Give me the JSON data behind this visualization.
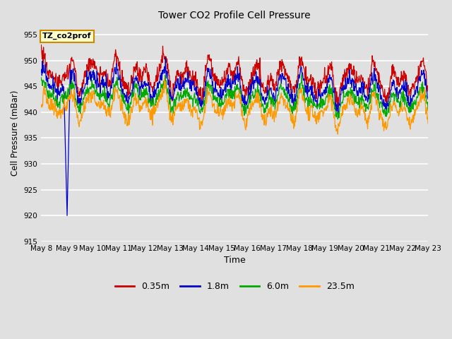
{
  "title": "Tower CO2 Profile Cell Pressure",
  "xlabel": "Time",
  "ylabel": "Cell Pressure (mBar)",
  "ylim": [
    915,
    957
  ],
  "yticks": [
    915,
    920,
    925,
    930,
    935,
    940,
    945,
    950,
    955
  ],
  "background_color": "#e0e0e0",
  "plot_bg_color": "#e0e0e0",
  "grid_color": "#ffffff",
  "series": [
    {
      "label": "0.35m",
      "color": "#cc0000",
      "base": 947.5,
      "amp": 2.0,
      "noise": 0.8
    },
    {
      "label": "1.8m",
      "color": "#0000cc",
      "base": 945.5,
      "amp": 1.8,
      "noise": 0.7
    },
    {
      "label": "6.0m",
      "color": "#00aa00",
      "base": 943.5,
      "amp": 1.5,
      "noise": 0.6
    },
    {
      "label": "23.5m",
      "color": "#ff9900",
      "base": 941.5,
      "amp": 1.8,
      "noise": 0.7
    }
  ],
  "annotation_label": "TZ_co2prof",
  "annotation_box_color": "#ffffcc",
  "annotation_border_color": "#cc8800",
  "n_points": 1000,
  "x_start": 8,
  "x_end": 23,
  "x_ticks_labels": [
    "May 8",
    "May 9",
    "May 10",
    "May 11",
    "May 12",
    "May 13",
    "May 14",
    "May 15",
    "May 16",
    "May 17",
    "May 18",
    "May 19",
    "May 20",
    "May 21",
    "May 22",
    "May 23"
  ],
  "x_ticks_positions": [
    8,
    9,
    10,
    11,
    12,
    13,
    14,
    15,
    16,
    17,
    18,
    19,
    20,
    21,
    22,
    23
  ],
  "figwidth": 6.4,
  "figheight": 4.8,
  "dpi": 100
}
